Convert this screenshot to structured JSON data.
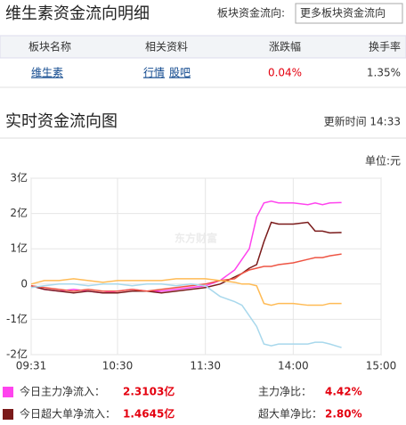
{
  "header": {
    "title": "维生素资金流向明细",
    "selector_label": "板块资金流向:",
    "selector": "更多板块资金流向"
  },
  "table": {
    "columns": [
      "板块名称",
      "相关资料",
      "涨跌幅",
      "换手率"
    ],
    "rows": [
      [
        "维生素",
        "行情",
        "股吧",
        "0.04%",
        "1.35%"
      ]
    ]
  },
  "section": {
    "title": "实时资金流向图",
    "update": "更新时间 14:33"
  },
  "chart_data": {
    "type": "line",
    "unit_label": "单位:元",
    "watermark": "东方财富",
    "x": [
      1,
      10,
      20,
      30,
      40,
      50,
      60,
      70,
      80,
      90,
      100,
      110,
      120,
      130,
      140,
      145,
      150,
      155,
      160,
      165,
      170,
      180,
      190,
      195,
      200,
      205,
      213
    ],
    "xlim": [
      1,
      240
    ],
    "xticks": [
      {
        "value": 1,
        "label": "09:31"
      },
      {
        "value": 60,
        "label": "10:30"
      },
      {
        "value": 120,
        "label": "11:30"
      },
      {
        "value": 180,
        "label": "14:00"
      },
      {
        "value": 240,
        "label": "15:00"
      }
    ],
    "ylim": [
      -2,
      3
    ],
    "yticks": [
      {
        "value": -2,
        "label": "-2亿"
      },
      {
        "value": -1,
        "label": "-1亿"
      },
      0,
      {
        "value": 1,
        "label": "1亿"
      },
      {
        "value": 2,
        "label": "2亿"
      },
      {
        "value": 3,
        "label": "3亿"
      }
    ],
    "grid": true,
    "series": [
      {
        "name": "今日主力净流入：",
        "color": "#ff44ee",
        "values": [
          -0.05,
          -0.15,
          -0.2,
          -0.15,
          -0.2,
          -0.25,
          -0.2,
          -0.15,
          -0.2,
          -0.2,
          -0.15,
          -0.1,
          -0.05,
          0.1,
          0.4,
          0.7,
          1.0,
          1.9,
          2.3,
          2.35,
          2.3,
          2.3,
          2.25,
          2.3,
          2.25,
          2.3,
          2.31
        ]
      },
      {
        "name": "今日超大单净流入：",
        "color": "#7a1a1a",
        "values": [
          -0.05,
          -0.15,
          -0.2,
          -0.25,
          -0.2,
          -0.25,
          -0.25,
          -0.2,
          -0.2,
          -0.25,
          -0.2,
          -0.15,
          -0.1,
          0.0,
          0.2,
          0.3,
          0.45,
          0.55,
          1.2,
          1.75,
          1.7,
          1.7,
          1.75,
          1.5,
          1.5,
          1.45,
          1.46
        ]
      },
      {
        "color": "#ee5544",
        "values": [
          -0.05,
          -0.1,
          -0.15,
          -0.2,
          -0.15,
          -0.2,
          -0.2,
          -0.15,
          -0.2,
          -0.15,
          -0.1,
          -0.05,
          0.0,
          0.1,
          0.15,
          0.3,
          0.4,
          0.45,
          0.5,
          0.5,
          0.55,
          0.6,
          0.7,
          0.75,
          0.75,
          0.8,
          0.85
        ]
      },
      {
        "color": "#ffbb55",
        "values": [
          0.0,
          0.1,
          0.1,
          0.15,
          0.1,
          0.05,
          0.1,
          0.1,
          0.1,
          0.1,
          0.15,
          0.15,
          0.15,
          0.1,
          0.05,
          0.0,
          0.0,
          -0.05,
          -0.55,
          -0.6,
          -0.55,
          -0.55,
          -0.6,
          -0.6,
          -0.6,
          -0.55,
          -0.55
        ]
      },
      {
        "color": "#a8d8ec",
        "values": [
          -0.1,
          -0.05,
          0.0,
          0.0,
          -0.05,
          0.0,
          0.0,
          -0.05,
          0.0,
          0.0,
          -0.05,
          0.0,
          -0.05,
          -0.35,
          -0.5,
          -0.6,
          -0.9,
          -1.2,
          -1.7,
          -1.75,
          -1.7,
          -1.7,
          -1.7,
          -1.65,
          -1.65,
          -1.7,
          -1.8
        ]
      }
    ],
    "summary": [
      {
        "value": "2.3103亿",
        "ratio_label": "主力净比：",
        "ratio": "4.42%"
      },
      {
        "value": "1.4645亿",
        "ratio_label": "超大单净比：",
        "ratio": "2.80%"
      }
    ]
  }
}
